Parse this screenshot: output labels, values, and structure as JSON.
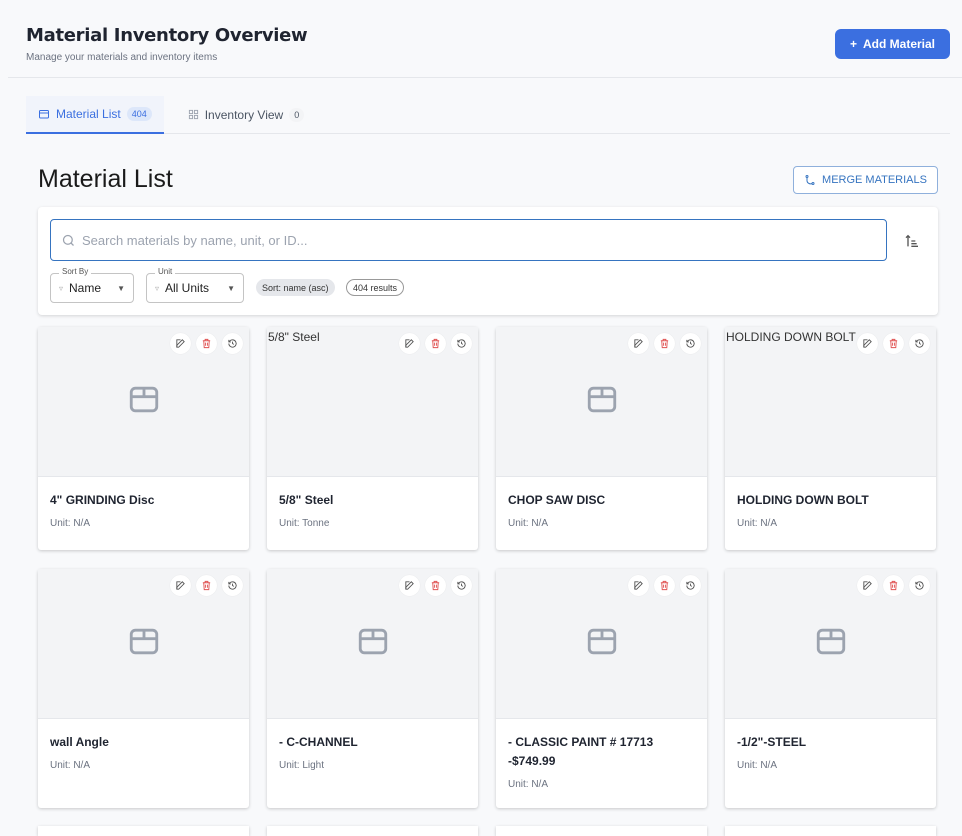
{
  "header": {
    "title": "Material Inventory Overview",
    "subtitle": "Manage your materials and inventory items",
    "add_label": "Add Material"
  },
  "tabs": [
    {
      "label": "Material List",
      "count": "404"
    },
    {
      "label": "Inventory View",
      "count": "0"
    }
  ],
  "main": {
    "heading": "Material List",
    "merge_label": "MERGE MATERIALS"
  },
  "filters": {
    "search_placeholder": "Search materials by name, unit, or ID...",
    "search_value": "",
    "sort_by_label": "Sort By",
    "sort_by_value": "Name",
    "unit_label": "Unit",
    "unit_value": "All Units",
    "sort_chip": "Sort: name (asc)",
    "results_chip": "404 results"
  },
  "colors": {
    "accent": "#3b6fe0",
    "delete": "#e05252"
  },
  "materials": [
    {
      "name": "4\" GRINDING Disc",
      "unit": "Unit: N/A",
      "alt": ""
    },
    {
      "name": "5/8\" Steel",
      "unit": "Unit: Tonne",
      "alt": "5/8\" Steel"
    },
    {
      "name": "CHOP SAW DISC",
      "unit": "Unit: N/A",
      "alt": ""
    },
    {
      "name": "HOLDING DOWN BOLT",
      "unit": "Unit: N/A",
      "alt": "HOLDING DOWN BOLT"
    },
    {
      "name": "wall Angle",
      "unit": "Unit: N/A",
      "alt": ""
    },
    {
      "name": "- C-CHANNEL",
      "unit": "Unit: Light",
      "alt": ""
    },
    {
      "name": "- CLASSIC PAINT # 17713 -$749.99",
      "unit": "Unit: N/A",
      "alt": ""
    },
    {
      "name": "-1/2\"-STEEL",
      "unit": "Unit: N/A",
      "alt": ""
    }
  ]
}
